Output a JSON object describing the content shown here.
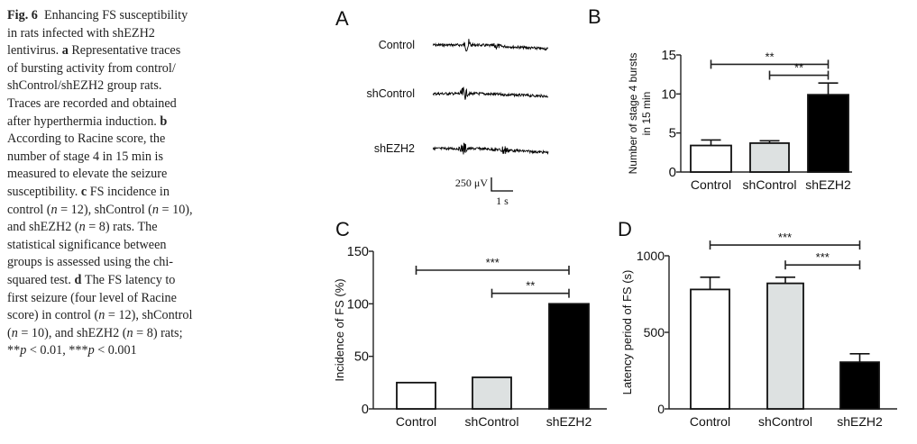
{
  "caption": {
    "lines": [
      [
        [
          "Fig. 6",
          "b"
        ],
        [
          "  Enhancing FS susceptibility",
          ""
        ]
      ],
      [
        [
          "in rats infected with shEZH2",
          ""
        ]
      ],
      [
        [
          "lentivirus. ",
          ""
        ],
        [
          "a",
          "b"
        ],
        [
          " Representative traces",
          ""
        ]
      ],
      [
        [
          "of bursting activity from control/",
          ""
        ]
      ],
      [
        [
          "shControl/shEZH2 group rats.",
          ""
        ]
      ],
      [
        [
          "Traces are recorded and obtained",
          ""
        ]
      ],
      [
        [
          "after hyperthermia induction. ",
          ""
        ],
        [
          "b",
          "b"
        ]
      ],
      [
        [
          "According to Racine score, the",
          ""
        ]
      ],
      [
        [
          "number of stage 4 in 15 min is",
          ""
        ]
      ],
      [
        [
          "measured to elevate the seizure",
          ""
        ]
      ],
      [
        [
          "susceptibility. ",
          ""
        ],
        [
          "c",
          "b"
        ],
        [
          " FS incidence in",
          ""
        ]
      ],
      [
        [
          "control (",
          ""
        ],
        [
          "n",
          "i"
        ],
        [
          " = 12), shControl (",
          ""
        ],
        [
          "n",
          "i"
        ],
        [
          " = 10),",
          ""
        ]
      ],
      [
        [
          "and shEZH2 (",
          ""
        ],
        [
          "n",
          "i"
        ],
        [
          " = 8) rats. The",
          ""
        ]
      ],
      [
        [
          "statistical significance between",
          ""
        ]
      ],
      [
        [
          "groups is assessed using the chi-",
          ""
        ]
      ],
      [
        [
          "squared test. ",
          ""
        ],
        [
          "d",
          "b"
        ],
        [
          " The FS latency to",
          ""
        ]
      ],
      [
        [
          "first seizure (four level of Racine",
          ""
        ]
      ],
      [
        [
          "score) in control (",
          ""
        ],
        [
          "n",
          "i"
        ],
        [
          " = 12), shControl",
          ""
        ]
      ],
      [
        [
          "(",
          ""
        ],
        [
          "n",
          "i"
        ],
        [
          " = 10), and shEZH2 (",
          ""
        ],
        [
          "n",
          "i"
        ],
        [
          " = 8) rats;",
          ""
        ]
      ],
      [
        [
          "**",
          ""
        ],
        [
          "p",
          "i"
        ],
        [
          " < 0.01, ***",
          ""
        ],
        [
          "p",
          "i"
        ],
        [
          " < 0.001",
          ""
        ]
      ]
    ]
  },
  "panel_a": {
    "label": "A",
    "traces": [
      "Control",
      "shControl",
      "shEZH2"
    ],
    "scale_voltage": "250 μV",
    "scale_time": "1 s"
  },
  "colors": {
    "control": "#ffffff",
    "shcontrol": "#dde1e1",
    "shezh2": "#000000"
  },
  "chart_data": [
    {
      "panel": "B",
      "type": "bar",
      "categories": [
        "Control",
        "shControl",
        "shEZH2"
      ],
      "values": [
        3.4,
        3.7,
        9.9
      ],
      "errors": [
        0.7,
        0.3,
        1.5
      ],
      "ylabel": [
        "Number of  stage 4 bursts",
        "in 15 min"
      ],
      "ylim": [
        0,
        15
      ],
      "yticks": [
        0,
        5,
        10,
        15
      ],
      "significance": [
        {
          "from": 0,
          "to": 2,
          "y": 13.8,
          "label": "**"
        },
        {
          "from": 1,
          "to": 2,
          "y": 12.4,
          "label": "**"
        }
      ]
    },
    {
      "panel": "C",
      "type": "bar",
      "categories": [
        "Control",
        "shControl",
        "shEZH2"
      ],
      "values": [
        25,
        30,
        100
      ],
      "errors": [
        0,
        0,
        0
      ],
      "ylabel": [
        "Incidence of FS (%)"
      ],
      "ylim": [
        0,
        150
      ],
      "yticks": [
        0,
        50,
        100,
        150
      ],
      "significance": [
        {
          "from": 0,
          "to": 2,
          "y": 132,
          "label": "***"
        },
        {
          "from": 1,
          "to": 2,
          "y": 110,
          "label": "**"
        }
      ]
    },
    {
      "panel": "D",
      "type": "bar",
      "categories": [
        "Control",
        "shControl",
        "shEZH2"
      ],
      "values": [
        780,
        820,
        305
      ],
      "errors": [
        80,
        40,
        55
      ],
      "ylabel": [
        "Latency period of FS (s)"
      ],
      "ylim": [
        0,
        1000
      ],
      "yticks": [
        0,
        500,
        1000
      ],
      "significance": [
        {
          "from": 0,
          "to": 2,
          "y": 1070,
          "label": "***"
        },
        {
          "from": 1,
          "to": 2,
          "y": 940,
          "label": "***"
        }
      ]
    }
  ]
}
